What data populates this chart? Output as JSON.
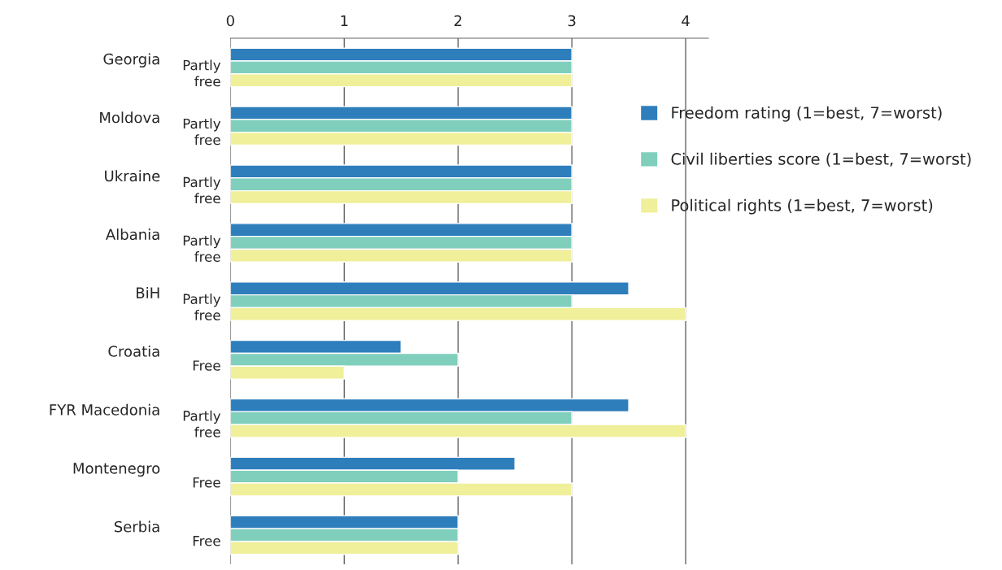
{
  "chart_data": {
    "type": "bar",
    "orientation": "horizontal",
    "categories": [
      "Georgia",
      "Moldova",
      "Ukraine",
      "Albania",
      "BiH",
      "Croatia",
      "FYR Macedonia",
      "Montenegro",
      "Serbia"
    ],
    "series": [
      {
        "name": "Freedom rating (1=best, 7=worst)",
        "color": "#2e7ebc",
        "values": [
          3,
          3,
          3,
          3,
          3.5,
          1.5,
          3.5,
          2.5,
          2
        ]
      },
      {
        "name": "Civil liberties score (1=best, 7=worst)",
        "color": "#7fcfbc",
        "values": [
          3,
          3,
          3,
          3,
          3,
          2,
          3,
          2,
          2
        ]
      },
      {
        "name": "Political rights (1=best, 7=worst)",
        "color": "#f0ef9a",
        "values": [
          3,
          3,
          3,
          3,
          4,
          1,
          4,
          3,
          2
        ]
      }
    ],
    "annotations": [
      "Partly\nfree",
      "Partly\nfree",
      "Partly\nfree",
      "Partly\nfree",
      "Partly\nfree",
      "Free",
      "Partly\nfree",
      "Free",
      "Free"
    ],
    "xlim": [
      0,
      4.2
    ],
    "xticks": [
      0,
      1,
      2,
      3,
      4
    ],
    "grid": "x",
    "legend": "right"
  }
}
